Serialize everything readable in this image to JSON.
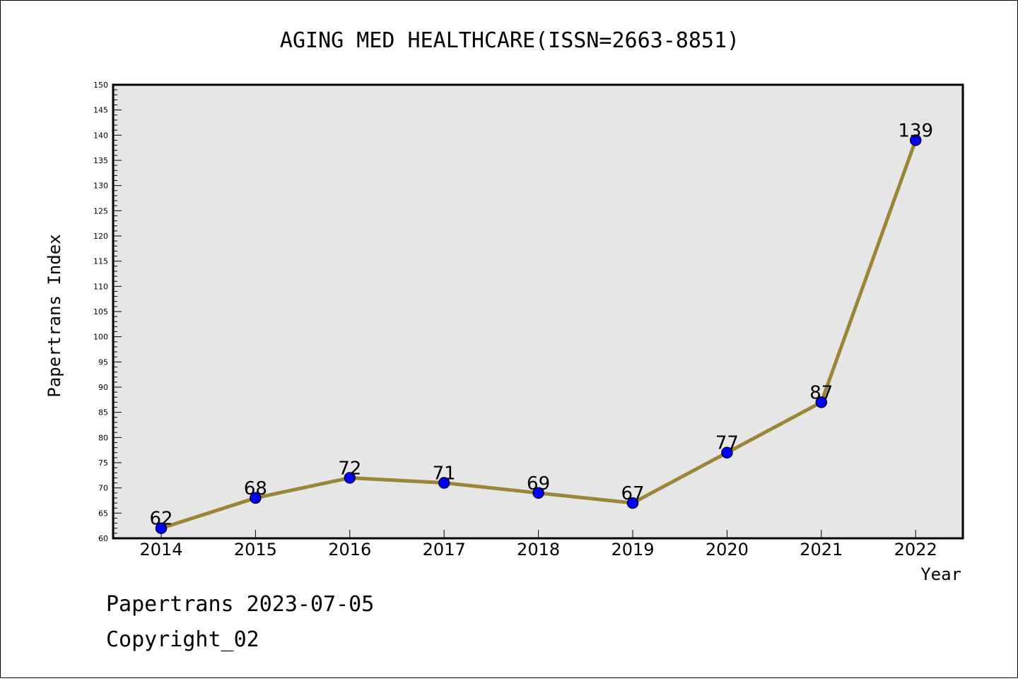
{
  "chart_data": {
    "type": "line",
    "title": "AGING MED HEALTHCARE(ISSN=2663-8851)",
    "xlabel": "Year",
    "ylabel": "Papertrans Index",
    "categories": [
      "2014",
      "2015",
      "2016",
      "2017",
      "2018",
      "2019",
      "2020",
      "2021",
      "2022"
    ],
    "series": [
      {
        "values": [
          62,
          68,
          72,
          71,
          69,
          67,
          77,
          87,
          139
        ]
      }
    ],
    "ylim": [
      60,
      150
    ],
    "yticks_major": [
      60,
      65,
      70,
      75,
      80,
      85,
      90,
      95,
      100,
      105,
      110,
      115,
      120,
      125,
      130,
      135,
      140,
      145,
      150
    ],
    "grid": false,
    "legend": "none",
    "data_labels": true,
    "colors": {
      "line": "#9b8538",
      "marker_fill": "#0000ff",
      "marker_stroke": "#000033",
      "plot_background": "#e6e6e6"
    }
  },
  "footer": {
    "line1": "Papertrans 2023-07-05",
    "line2": "Copyright_02"
  }
}
